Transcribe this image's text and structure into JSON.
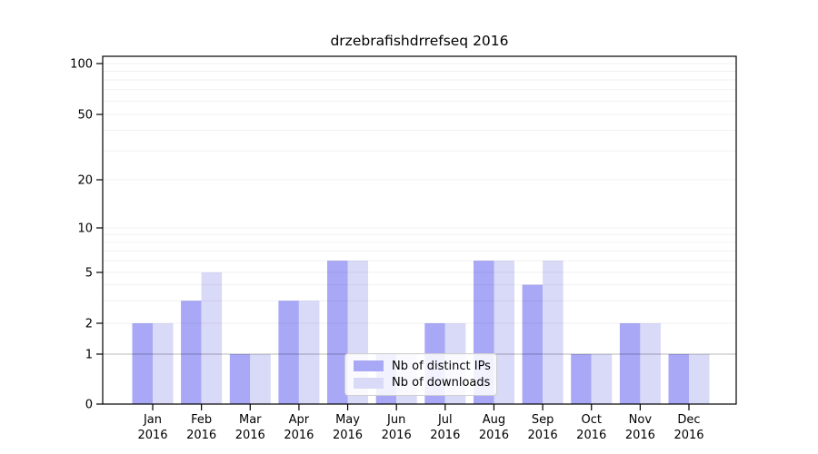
{
  "chart_data": {
    "type": "bar",
    "title": "drzebrafishdrrefseq 2016",
    "categories": [
      "Jan 2016",
      "Feb 2016",
      "Mar 2016",
      "Apr 2016",
      "May 2016",
      "Jun 2016",
      "Jul 2016",
      "Aug 2016",
      "Sep 2016",
      "Oct 2016",
      "Nov 2016",
      "Dec 2016"
    ],
    "series": [
      {
        "name": "Nb of distinct IPs",
        "color": "#a8a8f6",
        "values": [
          2,
          3,
          1,
          3,
          6,
          1,
          2,
          6,
          4,
          1,
          2,
          1
        ]
      },
      {
        "name": "Nb of downloads",
        "color": "#d9d9f8",
        "values": [
          2,
          5,
          1,
          3,
          6,
          1,
          2,
          6,
          6,
          1,
          2,
          1
        ]
      }
    ],
    "yticks": [
      0,
      1,
      2,
      5,
      10,
      20,
      50,
      100
    ],
    "yscale": "symlog",
    "ylim": [
      0,
      110
    ],
    "xlabel": "",
    "ylabel": "",
    "grid": true,
    "legend_position": "lower center"
  }
}
